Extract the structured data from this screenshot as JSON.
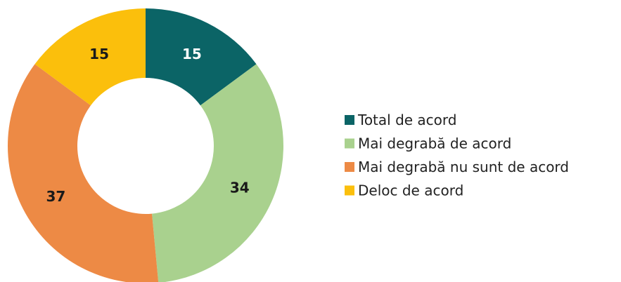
{
  "chart_data": {
    "type": "donut",
    "categories": [
      "Total de acord",
      "Mai degrabă de acord",
      "Mai degrabă nu sunt de acord",
      "Deloc de acord"
    ],
    "values": [
      15,
      34,
      37,
      15
    ],
    "colors": [
      "#0b6466",
      "#a9d18e",
      "#ed8a45",
      "#fbbf0c"
    ],
    "label_colors": [
      "#ffffff",
      "#1a1a1a",
      "#1a1a1a",
      "#1a1a1a"
    ],
    "legend": "right"
  }
}
